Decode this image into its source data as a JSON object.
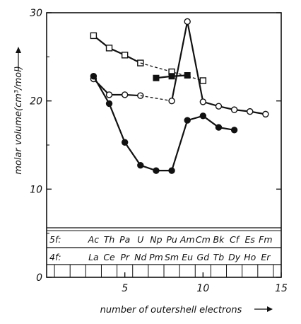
{
  "chart_data": {
    "type": "line",
    "xlabel": "number of outershell electrons",
    "ylabel": "molar volume(cm³/mol)",
    "xlim": [
      0,
      15
    ],
    "ylim": [
      0,
      30
    ],
    "x_ticks": [
      {
        "value": 5,
        "label": "5"
      },
      {
        "value": 10,
        "label": "10"
      },
      {
        "value": 15,
        "label": "15"
      }
    ],
    "y_ticks": [
      {
        "value": 0,
        "label": "0"
      },
      {
        "value": 10,
        "label": "10"
      },
      {
        "value": 20,
        "label": "20"
      },
      {
        "value": 30,
        "label": "30"
      }
    ],
    "element_rows": [
      {
        "label": "5f:",
        "elements": [
          {
            "symbol": "Ac",
            "x": 3
          },
          {
            "symbol": "Th",
            "x": 4
          },
          {
            "symbol": "Pa",
            "x": 5
          },
          {
            "symbol": "U",
            "x": 6
          },
          {
            "symbol": "Np",
            "x": 7
          },
          {
            "symbol": "Pu",
            "x": 8
          },
          {
            "symbol": "Am",
            "x": 9
          },
          {
            "symbol": "Cm",
            "x": 10
          },
          {
            "symbol": "Bk",
            "x": 11
          },
          {
            "symbol": "Cf",
            "x": 12
          },
          {
            "symbol": "Es",
            "x": 13
          },
          {
            "symbol": "Fm",
            "x": 14
          }
        ]
      },
      {
        "label": "4f:",
        "elements": [
          {
            "symbol": "La",
            "x": 3
          },
          {
            "symbol": "Ce",
            "x": 4
          },
          {
            "symbol": "Pr",
            "x": 5
          },
          {
            "symbol": "Nd",
            "x": 6
          },
          {
            "symbol": "Pm",
            "x": 7
          },
          {
            "symbol": "Sm",
            "x": 8
          },
          {
            "symbol": "Eu",
            "x": 9
          },
          {
            "symbol": "Gd",
            "x": 10
          },
          {
            "symbol": "Tb",
            "x": 11
          },
          {
            "symbol": "Dy",
            "x": 12
          },
          {
            "symbol": "Ho",
            "x": 13
          },
          {
            "symbol": "Er",
            "x": 14
          }
        ]
      }
    ],
    "series": [
      {
        "marker": "open-square",
        "line": "solid",
        "points": [
          {
            "x": 3,
            "y": 27.4
          },
          {
            "x": 4,
            "y": 26.0
          },
          {
            "x": 5,
            "y": 25.2
          },
          {
            "x": 6,
            "y": 24.3
          }
        ]
      },
      {
        "marker": "none",
        "line": "dashed",
        "points": [
          {
            "x": 6,
            "y": 24.3
          },
          {
            "x": 8,
            "y": 23.3
          },
          {
            "x": 10,
            "y": 22.3
          }
        ]
      },
      {
        "marker": "open-square",
        "line": "none",
        "points": [
          {
            "x": 8,
            "y": 23.3
          },
          {
            "x": 10,
            "y": 22.3
          }
        ]
      },
      {
        "marker": "filled-square",
        "line": "solid",
        "points": [
          {
            "x": 7,
            "y": 22.6
          },
          {
            "x": 8,
            "y": 22.8
          },
          {
            "x": 9,
            "y": 22.9
          }
        ]
      },
      {
        "marker": "open-circle",
        "line": "solid",
        "points": [
          {
            "x": 3,
            "y": 22.5
          },
          {
            "x": 4,
            "y": 20.7
          },
          {
            "x": 5,
            "y": 20.7
          },
          {
            "x": 6,
            "y": 20.6
          }
        ]
      },
      {
        "marker": "none",
        "line": "dashed",
        "points": [
          {
            "x": 6,
            "y": 20.6
          },
          {
            "x": 8,
            "y": 20.0
          }
        ]
      },
      {
        "marker": "open-circle",
        "line": "solid",
        "points": [
          {
            "x": 8,
            "y": 20.0
          },
          {
            "x": 9,
            "y": 29.0
          },
          {
            "x": 10,
            "y": 19.9
          },
          {
            "x": 11,
            "y": 19.4
          },
          {
            "x": 12,
            "y": 19.0
          },
          {
            "x": 13,
            "y": 18.8
          },
          {
            "x": 14,
            "y": 18.5
          }
        ]
      },
      {
        "marker": "filled-circle",
        "line": "solid",
        "points": [
          {
            "x": 3,
            "y": 22.8
          },
          {
            "x": 4,
            "y": 19.7
          },
          {
            "x": 5,
            "y": 15.3
          },
          {
            "x": 6,
            "y": 12.7
          },
          {
            "x": 7,
            "y": 12.1
          },
          {
            "x": 8,
            "y": 12.1
          },
          {
            "x": 9,
            "y": 17.8
          },
          {
            "x": 10,
            "y": 18.3
          },
          {
            "x": 11,
            "y": 17.0
          },
          {
            "x": 12,
            "y": 16.7
          }
        ]
      }
    ]
  }
}
